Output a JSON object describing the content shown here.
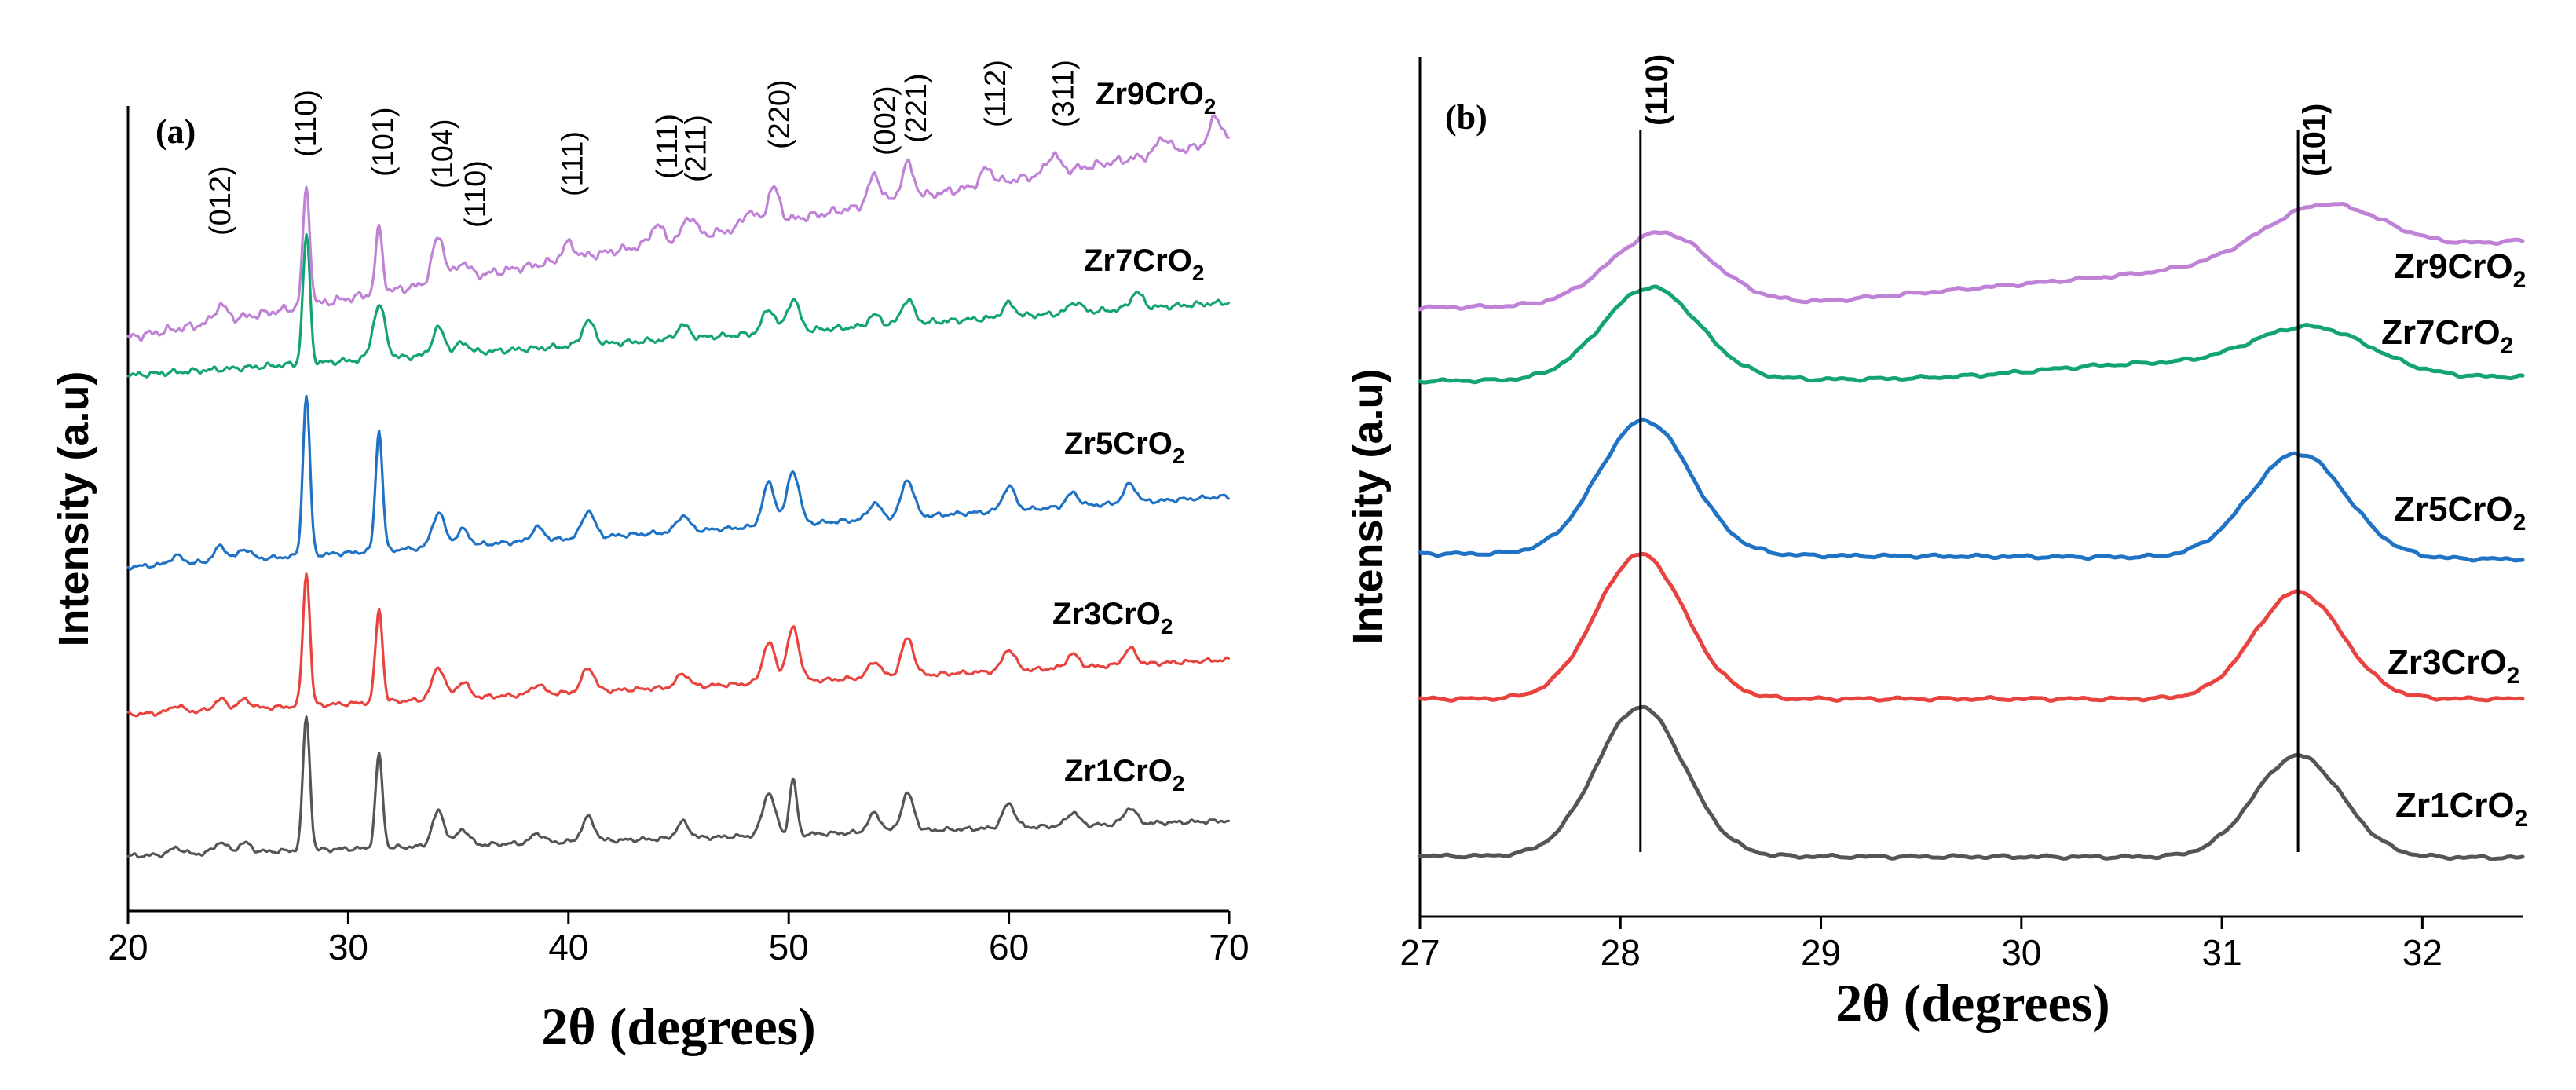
{
  "chart_data": [
    {
      "panel": "(a)",
      "type": "line",
      "xlabel": "2θ (degrees)",
      "ylabel": "Intensity (a.u)",
      "xlim": [
        20,
        70
      ],
      "xticks": [
        20,
        30,
        40,
        50,
        60,
        70
      ],
      "series": [
        {
          "name": "Zr1CrO2",
          "color": "#555555",
          "peaks": [
            [
              22.2,
              0.25
            ],
            [
              24.2,
              0.4
            ],
            [
              25.3,
              0.35
            ],
            [
              28.1,
              5.0
            ],
            [
              31.4,
              3.5
            ],
            [
              34.1,
              1.3
            ],
            [
              35.2,
              0.6
            ],
            [
              38.6,
              0.35
            ],
            [
              40.9,
              0.9
            ],
            [
              45.2,
              0.6
            ],
            [
              49.1,
              1.6
            ],
            [
              50.2,
              2.1
            ],
            [
              53.9,
              0.7
            ],
            [
              55.4,
              1.4
            ],
            [
              60.0,
              0.9
            ],
            [
              62.9,
              0.5
            ],
            [
              65.5,
              0.6
            ]
          ]
        },
        {
          "name": "Zr3CrO2",
          "color": "#e8433f",
          "peaks": [
            [
              22.2,
              0.25
            ],
            [
              24.2,
              0.4
            ],
            [
              25.3,
              0.35
            ],
            [
              28.1,
              5.0
            ],
            [
              31.4,
              3.5
            ],
            [
              34.1,
              1.2
            ],
            [
              35.2,
              0.6
            ],
            [
              38.6,
              0.35
            ],
            [
              40.9,
              0.9
            ],
            [
              45.2,
              0.5
            ],
            [
              49.1,
              1.5
            ],
            [
              50.2,
              2.0
            ],
            [
              53.9,
              0.6
            ],
            [
              55.4,
              1.4
            ],
            [
              60.0,
              0.8
            ],
            [
              62.9,
              0.5
            ],
            [
              65.5,
              0.6
            ]
          ]
        },
        {
          "name": "Zr5CrO2",
          "color": "#1f72c4",
          "peaks": [
            [
              22.2,
              0.3
            ],
            [
              24.2,
              0.55
            ],
            [
              25.3,
              0.4
            ],
            [
              28.1,
              6.0
            ],
            [
              31.4,
              4.5
            ],
            [
              34.1,
              1.3
            ],
            [
              35.2,
              0.6
            ],
            [
              38.6,
              0.5
            ],
            [
              40.9,
              1.0
            ],
            [
              45.2,
              0.6
            ],
            [
              49.1,
              1.6
            ],
            [
              50.2,
              2.0
            ],
            [
              53.9,
              0.6
            ],
            [
              55.4,
              1.4
            ],
            [
              60.0,
              0.9
            ],
            [
              62.9,
              0.5
            ],
            [
              65.5,
              0.7
            ]
          ]
        },
        {
          "name": "Zr7CrO2",
          "color": "#14a472",
          "peaks": [
            [
              28.1,
              4.8
            ],
            [
              31.4,
              2.0
            ],
            [
              34.1,
              1.0
            ],
            [
              35.2,
              0.4
            ],
            [
              40.9,
              0.9
            ],
            [
              45.2,
              0.5
            ],
            [
              49.1,
              0.9
            ],
            [
              50.2,
              1.2
            ],
            [
              53.9,
              0.4
            ],
            [
              55.4,
              0.9
            ],
            [
              60.0,
              0.5
            ],
            [
              63.0,
              0.4
            ],
            [
              65.8,
              0.6
            ]
          ]
        },
        {
          "name": "Zr9CrO2",
          "color": "#bf82d6",
          "peaks": [
            [
              24.2,
              0.6
            ],
            [
              28.1,
              4.4
            ],
            [
              31.4,
              2.4
            ],
            [
              34.1,
              1.7
            ],
            [
              35.2,
              0.6
            ],
            [
              40.0,
              0.6
            ],
            [
              44.0,
              0.7
            ],
            [
              45.5,
              0.8
            ],
            [
              48.2,
              0.6
            ],
            [
              49.3,
              1.3
            ],
            [
              53.9,
              1.1
            ],
            [
              55.4,
              1.3
            ],
            [
              59.0,
              0.6
            ],
            [
              62.0,
              0.7
            ],
            [
              67.0,
              0.6
            ],
            [
              69.4,
              1.0
            ]
          ]
        }
      ],
      "annotations": [
        {
          "text": "(012)",
          "x": 24.2
        },
        {
          "text": "(110)",
          "x": 28.1
        },
        {
          "text": "(101)",
          "x": 31.6
        },
        {
          "text": "(104)",
          "x": 34.3
        },
        {
          "text": "(110)",
          "x": 35.8
        },
        {
          "text": "(111)",
          "x": 40.2
        },
        {
          "text": "(111)",
          "x": 44.5
        },
        {
          "text": "(211)",
          "x": 45.8
        },
        {
          "text": "(220)",
          "x": 49.6
        },
        {
          "text": "(002)",
          "x": 54.4
        },
        {
          "text": "(221)",
          "x": 55.8
        },
        {
          "text": "(112)",
          "x": 59.4
        },
        {
          "text": "(311)",
          "x": 62.5
        }
      ]
    },
    {
      "panel": "(b)",
      "type": "line",
      "xlabel": "2θ (degrees)",
      "ylabel": "Intensity (a.u)",
      "xlim": [
        27,
        32.5
      ],
      "xticks": [
        27,
        28,
        29,
        30,
        31,
        32
      ],
      "reference_lines": [
        {
          "label": "(110)",
          "x": 28.1
        },
        {
          "label": "(101)",
          "x": 31.38
        }
      ],
      "series": [
        {
          "name": "Zr1CrO2",
          "color": "#555555",
          "peaks": [
            [
              28.1,
              1.0,
              0.22
            ],
            [
              31.38,
              0.68,
              0.22
            ]
          ]
        },
        {
          "name": "Zr3CrO2",
          "color": "#e8433f",
          "peaks": [
            [
              28.1,
              0.92,
              0.22
            ],
            [
              31.38,
              0.68,
              0.22
            ]
          ]
        },
        {
          "name": "Zr5CrO2",
          "color": "#1f72c4",
          "peaks": [
            [
              28.12,
              0.95,
              0.23
            ],
            [
              31.38,
              0.74,
              0.24
            ]
          ]
        },
        {
          "name": "Zr7CrO2",
          "color": "#14a472",
          "peaks": [
            [
              28.15,
              0.62,
              0.24
            ],
            [
              31.45,
              0.32,
              0.3
            ]
          ]
        },
        {
          "name": "Zr9CrO2",
          "color": "#bf82d6",
          "peaks": [
            [
              28.2,
              0.48,
              0.25
            ],
            [
              31.5,
              0.36,
              0.3
            ]
          ]
        }
      ]
    }
  ],
  "labels": {
    "panel_a": "(a)",
    "panel_b": "(b)",
    "xlabel_a": "2θ (degrees)",
    "xlabel_b": "2θ (degrees)",
    "ylabel_a": "Intensity (a.u)",
    "ylabel_b": "Intensity (a.u)",
    "series_a": [
      {
        "base": "Zr9CrO",
        "sub": "2"
      },
      {
        "base": "Zr7CrO",
        "sub": "2"
      },
      {
        "base": "Zr5CrO",
        "sub": "2"
      },
      {
        "base": "Zr3CrO",
        "sub": "2"
      },
      {
        "base": "Zr1CrO",
        "sub": "2"
      }
    ],
    "series_b": [
      {
        "base": "Zr9CrO",
        "sub": "2"
      },
      {
        "base": "Zr7CrO",
        "sub": "2"
      },
      {
        "base": "Zr5CrO",
        "sub": "2"
      },
      {
        "base": "Zr3CrO",
        "sub": "2"
      },
      {
        "base": "Zr1CrO",
        "sub": "2"
      }
    ]
  }
}
